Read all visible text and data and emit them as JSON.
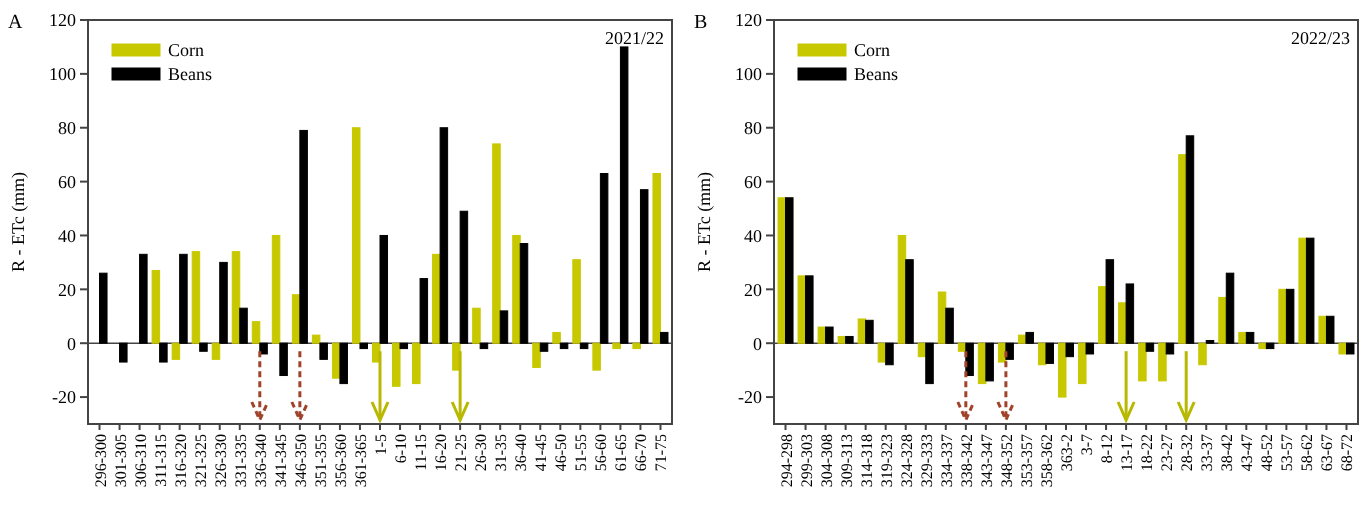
{
  "chart_data": [
    {
      "type": "bar",
      "title": "A",
      "ylabel": "R - ETc (mm)",
      "annotations": [
        "2021/22"
      ],
      "categories": [
        "296-300",
        "301-305",
        "306-310",
        "311-315",
        "316-320",
        "321-325",
        "326-330",
        "331-335",
        "336-340",
        "341-345",
        "346-350",
        "351-355",
        "356-360",
        "361-365",
        "1-5",
        "6-10",
        "11-15",
        "16-20",
        "21-25",
        "26-30",
        "31-35",
        "36-40",
        "41-45",
        "46-50",
        "51-55",
        "56-60",
        "61-65",
        "66-70",
        "71-75"
      ],
      "series": [
        {
          "name": "Corn",
          "color": "#c8c800",
          "values": [
            null,
            null,
            null,
            27,
            -6,
            34,
            -6,
            34,
            8,
            40,
            18,
            3,
            -13,
            80,
            -7,
            -16,
            -15,
            33,
            -10,
            13,
            74,
            40,
            -9,
            4,
            31,
            -10,
            -2,
            -2,
            63
          ]
        },
        {
          "name": "Beans",
          "color": "#000000",
          "values": [
            26,
            -7,
            33,
            -7,
            33,
            -3,
            30,
            13,
            -4,
            -12,
            79,
            -6,
            -15,
            -2,
            40,
            -2,
            24,
            80,
            49,
            -2,
            12,
            37,
            -3,
            -2,
            -2,
            63,
            110,
            57,
            4
          ]
        }
      ],
      "ylim": [
        -30,
        120
      ],
      "yticks": [
        -20,
        0,
        20,
        40,
        60,
        80,
        100,
        120
      ],
      "legend": "top left"
    },
    {
      "type": "bar",
      "title": "B",
      "ylabel": "R - ETc (mm)",
      "annotations": [
        "2022/23"
      ],
      "categories": [
        "294-298",
        "299-303",
        "304-308",
        "309-313",
        "314-318",
        "319-323",
        "324-328",
        "329-333",
        "334-337",
        "338-342",
        "343-347",
        "348-352",
        "353-357",
        "358-362",
        "363-2",
        "3-7",
        "8-12",
        "13-17",
        "18-22",
        "23-27",
        "28-32",
        "33-37",
        "38-42",
        "43-47",
        "48-52",
        "53-57",
        "58-62",
        "63-67",
        "68-72"
      ],
      "series": [
        {
          "name": "Corn",
          "color": "#c8c800",
          "values": [
            54,
            25,
            6,
            2.5,
            9,
            -7,
            40,
            -5,
            19,
            -3,
            -15,
            -7,
            3,
            -8,
            -20,
            -15,
            21,
            15,
            -14,
            -14,
            70,
            -8,
            17,
            4,
            -2,
            20,
            39,
            10,
            -4
          ]
        },
        {
          "name": "Beans",
          "color": "#000000",
          "values": [
            54,
            25,
            6,
            2.5,
            8.5,
            -8,
            31,
            -15,
            13,
            -12,
            -14,
            -6,
            4,
            -7.5,
            -5,
            -4,
            31,
            22,
            -3,
            -4,
            77,
            1,
            26,
            4,
            -2,
            20,
            39,
            10,
            -4
          ]
        }
      ],
      "ylim": [
        -30,
        120
      ],
      "yticks": [
        -20,
        0,
        20,
        40,
        60,
        80,
        100,
        120
      ],
      "legend": "top left"
    }
  ]
}
